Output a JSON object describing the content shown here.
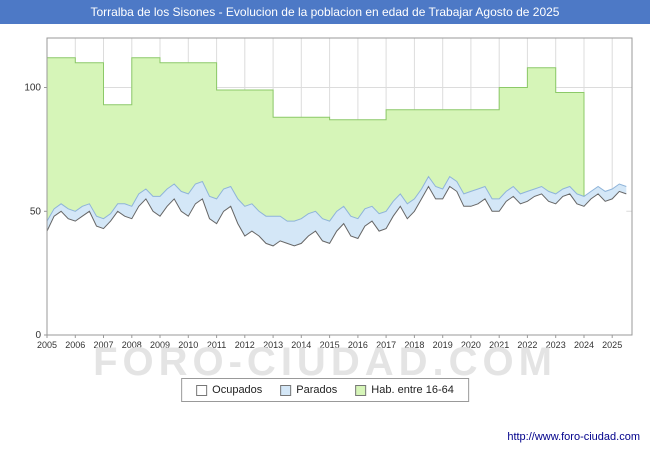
{
  "title_bar": {
    "text": "Torralba de los Sisones - Evolucion de la poblacion en edad de Trabajar Agosto de 2025"
  },
  "watermark": {
    "text": "FORO-CIUDAD.COM"
  },
  "footer": {
    "link": "http://www.foro-ciudad.com"
  },
  "colors": {
    "title_bar_bg": "#4d79c6",
    "grid": "#dcdcdc",
    "plot_border": "#999999"
  },
  "legend": {
    "items": [
      {
        "label": "Ocupados",
        "fill": "#ffffff"
      },
      {
        "label": "Parados",
        "fill": "#d4e7f7"
      },
      {
        "label": "Hab. entre 16-64",
        "fill": "#d6f5b8"
      }
    ]
  },
  "chart_data": {
    "type": "area",
    "title": "Torralba de los Sisones - Evolucion de la poblacion en edad de Trabajar Agosto de 2025",
    "xlabel": "",
    "ylabel": "",
    "xlim": [
      2005,
      2025.7
    ],
    "ylim": [
      0,
      120
    ],
    "xticks": [
      2005,
      2006,
      2007,
      2008,
      2009,
      2010,
      2011,
      2012,
      2013,
      2014,
      2015,
      2016,
      2017,
      2018,
      2019,
      2020,
      2021,
      2022,
      2023,
      2024,
      2025
    ],
    "yticks": [
      0,
      50,
      100
    ],
    "grid": true,
    "legend_position": "bottom",
    "x_start": 2005,
    "x_step": 0.25,
    "series": [
      {
        "name": "Ocupados",
        "role": "ocupados",
        "fill": "#ffffff",
        "stroke": "#666666",
        "values": [
          42,
          48,
          50,
          47,
          46,
          48,
          50,
          44,
          43,
          46,
          50,
          48,
          47,
          52,
          55,
          50,
          48,
          52,
          55,
          50,
          48,
          53,
          55,
          47,
          45,
          50,
          52,
          45,
          40,
          42,
          40,
          37,
          36,
          38,
          37,
          36,
          37,
          40,
          42,
          38,
          37,
          42,
          45,
          40,
          39,
          44,
          46,
          42,
          43,
          48,
          52,
          47,
          50,
          55,
          60,
          55,
          55,
          60,
          58,
          52,
          52,
          53,
          55,
          50,
          50,
          54,
          56,
          53,
          54,
          56,
          57,
          54,
          53,
          56,
          57,
          53,
          52,
          55,
          57,
          54,
          55,
          58,
          57
        ]
      },
      {
        "name": "Parados",
        "role": "parados",
        "fill": "#d4e7f7",
        "stroke": "#8fb4d9",
        "values": [
          4,
          3,
          3,
          4,
          4,
          4,
          3,
          4,
          4,
          3,
          3,
          5,
          5,
          5,
          4,
          6,
          8,
          7,
          6,
          8,
          9,
          8,
          7,
          9,
          10,
          9,
          8,
          10,
          12,
          11,
          10,
          11,
          12,
          10,
          9,
          10,
          10,
          9,
          8,
          9,
          9,
          8,
          7,
          8,
          8,
          7,
          6,
          7,
          7,
          6,
          5,
          6,
          5,
          4,
          4,
          5,
          4,
          4,
          4,
          5,
          6,
          6,
          5,
          5,
          5,
          4,
          4,
          4,
          4,
          3,
          3,
          4,
          4,
          3,
          3,
          4,
          4,
          3,
          3,
          4,
          4,
          3,
          3
        ]
      },
      {
        "name": "Hab. entre 16-64",
        "role": "hab",
        "fill": "#d6f5b8",
        "stroke": "#8cc968",
        "years": [
          2005,
          2006,
          2007,
          2008,
          2009,
          2010,
          2011,
          2012,
          2013,
          2014,
          2015,
          2016,
          2017,
          2018,
          2019,
          2020,
          2021,
          2022,
          2023
        ],
        "values": [
          112,
          110,
          93,
          112,
          110,
          110,
          99,
          99,
          88,
          88,
          87,
          87,
          91,
          91,
          91,
          91,
          100,
          108,
          98
        ]
      }
    ]
  }
}
